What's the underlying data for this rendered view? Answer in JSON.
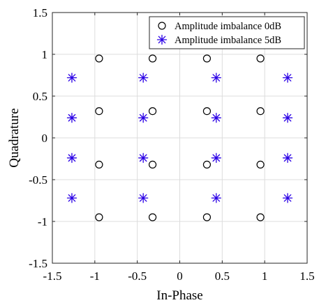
{
  "chart_data": {
    "type": "scatter",
    "title": "",
    "xlabel": "In-Phase",
    "ylabel": "Quadrature",
    "xlim": [
      -1.5,
      1.5
    ],
    "ylim": [
      -1.5,
      1.5
    ],
    "xticks": [
      "-1.5",
      "-1",
      "-0.5",
      "0",
      "0.5",
      "1",
      "1.5"
    ],
    "yticks": [
      "-1.5",
      "-1",
      "-0.5",
      "0",
      "0.5",
      "1",
      "1.5"
    ],
    "grid": true,
    "legend_position": "top-right",
    "series": [
      {
        "name": "Amplitude imbalance 0dB",
        "marker": "circle",
        "color": "#000000",
        "points": [
          [
            -0.95,
            0.95
          ],
          [
            -0.32,
            0.95
          ],
          [
            0.32,
            0.95
          ],
          [
            0.95,
            0.95
          ],
          [
            -0.95,
            0.32
          ],
          [
            -0.32,
            0.32
          ],
          [
            0.32,
            0.32
          ],
          [
            0.95,
            0.32
          ],
          [
            -0.95,
            -0.32
          ],
          [
            -0.32,
            -0.32
          ],
          [
            0.32,
            -0.32
          ],
          [
            0.95,
            -0.32
          ],
          [
            -0.95,
            -0.95
          ],
          [
            -0.32,
            -0.95
          ],
          [
            0.32,
            -0.95
          ],
          [
            0.95,
            -0.95
          ]
        ]
      },
      {
        "name": "Amplitude imbalance 5dB",
        "marker": "asterisk",
        "color": "#2a00e6",
        "points": [
          [
            -1.27,
            0.72
          ],
          [
            -0.43,
            0.72
          ],
          [
            0.43,
            0.72
          ],
          [
            1.27,
            0.72
          ],
          [
            -1.27,
            0.24
          ],
          [
            -0.43,
            0.24
          ],
          [
            0.43,
            0.24
          ],
          [
            1.27,
            0.24
          ],
          [
            -1.27,
            -0.24
          ],
          [
            -0.43,
            -0.24
          ],
          [
            0.43,
            -0.24
          ],
          [
            1.27,
            -0.24
          ],
          [
            -1.27,
            -0.72
          ],
          [
            -0.43,
            -0.72
          ],
          [
            0.43,
            -0.72
          ],
          [
            1.27,
            -0.72
          ]
        ]
      }
    ]
  }
}
